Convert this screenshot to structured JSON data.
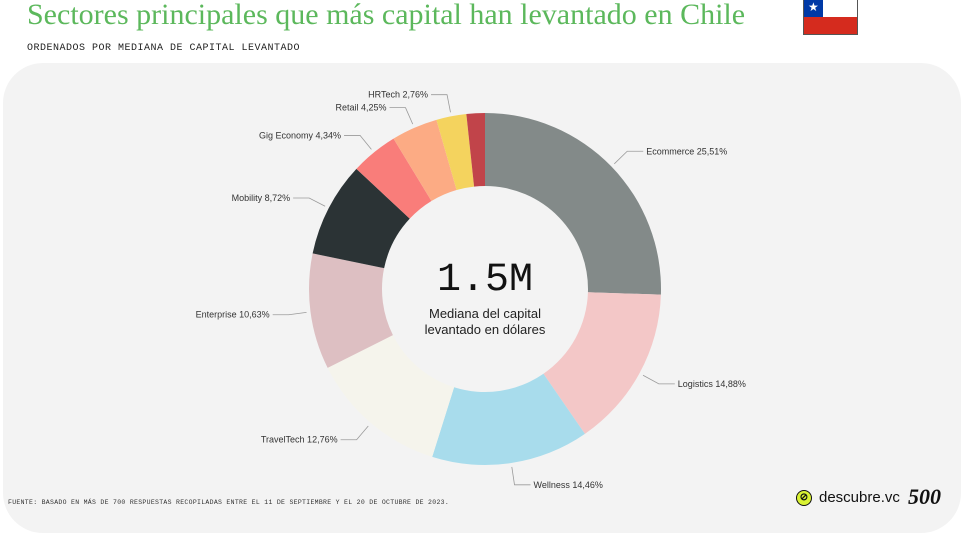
{
  "header": {
    "title": "Sectores principales que más capital han levantado en Chile",
    "subtitle": "ORDENADOS POR MEDIANA DE CAPITAL LEVANTADO"
  },
  "footer": {
    "source": "FUENTE: BASADO EN MÁS DE 700 RESPUESTAS RECOPILADAS ENTRE EL 11 DE SEPTIEMBRE Y EL 20 DE OCTUBRE DE 2023.",
    "brand_descubre": "descubre.vc",
    "brand_500": "500"
  },
  "chart_data": {
    "type": "pie",
    "center_value": "1.5M",
    "center_label_line1": "Mediana del capital",
    "center_label_line2": "levantado en dólares",
    "slices": [
      {
        "name": "Ecommerce",
        "value": 25.51,
        "label": "Ecommerce 25,51%",
        "color": "#838a89"
      },
      {
        "name": "Logistics",
        "value": 14.88,
        "label": "Logistics 14,88%",
        "color": "#f3c7c7"
      },
      {
        "name": "Wellness",
        "value": 14.46,
        "label": "Wellness 14,46%",
        "color": "#a8dcec"
      },
      {
        "name": "TravelTech",
        "value": 12.76,
        "label": "TravelTech 12,76%",
        "color": "#f5f4ec"
      },
      {
        "name": "Enterprise",
        "value": 10.63,
        "label": "Enterprise 10,63%",
        "color": "#ddbfc2"
      },
      {
        "name": "Mobility",
        "value": 8.72,
        "label": "Mobility 8,72%",
        "color": "#2b3335"
      },
      {
        "name": "Gig Economy",
        "value": 4.34,
        "label": "Gig Economy 4,34%",
        "color": "#f97d7a"
      },
      {
        "name": "Retail",
        "value": 4.25,
        "label": "Retail 4,25%",
        "color": "#fcab84"
      },
      {
        "name": "HRTech",
        "value": 2.76,
        "label": "HRTech 2,76%",
        "color": "#f4d35e"
      },
      {
        "name": "",
        "value": 1.69,
        "label": "",
        "color": "#c1444a"
      }
    ]
  }
}
